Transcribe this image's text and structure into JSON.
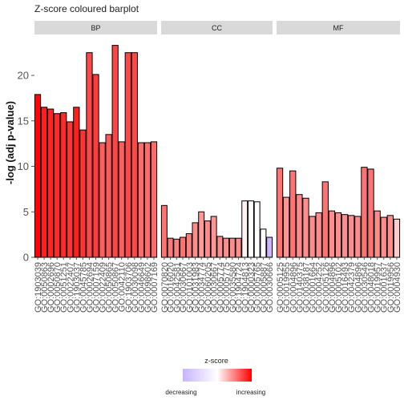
{
  "chart_data": {
    "type": "bar",
    "title": "Z-score coloured barplot",
    "ylabel": "-log (adj p-value)",
    "xlabel": "",
    "ylim": [
      0,
      24.5
    ],
    "yticks": [
      0,
      5,
      10,
      15,
      20
    ],
    "grid": false,
    "legend": {
      "title": "z-score",
      "low_label": "decreasing",
      "high_label": "increasing",
      "placement": "bottom"
    },
    "colors": {
      "increasing": "#ff0000",
      "neutral": "#ffffff",
      "decreasing": "#c8b4ff",
      "strip": "#d9d9d9",
      "edge": "#000000"
    },
    "panels": [
      {
        "name": "BP",
        "bars": [
          {
            "term": "GO:1903039",
            "value": 17.9,
            "z": 0.98
          },
          {
            "term": "GO:0050863",
            "value": 16.5,
            "z": 0.88
          },
          {
            "term": "GO:0002696",
            "value": 16.3,
            "z": 0.86
          },
          {
            "term": "GO:0050870",
            "value": 15.8,
            "z": 0.83
          },
          {
            "term": "GO:0051251",
            "value": 15.9,
            "z": 0.84
          },
          {
            "term": "GO:0022407",
            "value": 14.9,
            "z": 0.79
          },
          {
            "term": "GO:1903037",
            "value": 16.5,
            "z": 0.88
          },
          {
            "term": "GO:0045785",
            "value": 14.0,
            "z": 0.8
          },
          {
            "term": "GO:0002694",
            "value": 22.5,
            "z": 0.72
          },
          {
            "term": "GO:0007159",
            "value": 20.1,
            "z": 0.77
          },
          {
            "term": "GO:0022409",
            "value": 12.6,
            "z": 0.63
          },
          {
            "term": "GO:0050865",
            "value": 13.5,
            "z": 0.65
          },
          {
            "term": "GO:0050867",
            "value": 23.3,
            "z": 0.73
          },
          {
            "term": "GO:0042110",
            "value": 12.7,
            "z": 0.63
          },
          {
            "term": "GO:1903706",
            "value": 22.5,
            "z": 0.72
          },
          {
            "term": "GO:0030098",
            "value": 22.5,
            "z": 0.72
          },
          {
            "term": "GO:0046649",
            "value": 12.6,
            "z": 0.58
          },
          {
            "term": "GO:0098602",
            "value": 12.6,
            "z": 0.58
          },
          {
            "term": "GO:0007169",
            "value": 12.7,
            "z": 0.59
          }
        ]
      },
      {
        "name": "CC",
        "bars": [
          {
            "term": "GO:0070820",
            "value": 5.7,
            "z": 0.55
          },
          {
            "term": "GO:0016020",
            "value": 2.1,
            "z": 0.52
          },
          {
            "term": "GO:0042581",
            "value": 2.0,
            "z": 0.5
          },
          {
            "term": "GO:0030667",
            "value": 2.2,
            "z": 0.55
          },
          {
            "term": "GO:0101003",
            "value": 2.6,
            "z": 0.5
          },
          {
            "term": "GO:0031983",
            "value": 3.8,
            "z": 0.45
          },
          {
            "term": "GO:0034774",
            "value": 5.0,
            "z": 0.4
          },
          {
            "term": "GO:0060205",
            "value": 4.0,
            "z": 0.45
          },
          {
            "term": "GO:0030667",
            "value": 4.5,
            "z": 0.42
          },
          {
            "term": "GO:0005774",
            "value": 2.3,
            "z": 0.45
          },
          {
            "term": "GO:0005775",
            "value": 2.1,
            "z": 0.45
          },
          {
            "term": "GO:0035580",
            "value": 2.1,
            "z": 0.45
          },
          {
            "term": "GO:1904724",
            "value": 2.1,
            "z": 0.45
          },
          {
            "term": "GO:1904813",
            "value": 6.2,
            "z": 0.05
          },
          {
            "term": "GO:0000323",
            "value": 6.2,
            "z": 0.0
          },
          {
            "term": "GO:0005765",
            "value": 6.1,
            "z": 0.0
          },
          {
            "term": "GO:0005887",
            "value": 3.1,
            "z": 0.0
          },
          {
            "term": "GO:0030666",
            "value": 2.2,
            "z": -1.0
          }
        ]
      },
      {
        "name": "MF",
        "bars": [
          {
            "term": "GO:0005125",
            "value": 9.8,
            "z": 0.55
          },
          {
            "term": "GO:0019955",
            "value": 6.6,
            "z": 0.42
          },
          {
            "term": "GO:0004896",
            "value": 9.5,
            "z": 0.55
          },
          {
            "term": "GO:0140375",
            "value": 6.9,
            "z": 0.45
          },
          {
            "term": "GO:0038187",
            "value": 6.5,
            "z": 0.45
          },
          {
            "term": "GO:0001664",
            "value": 4.5,
            "z": 0.45
          },
          {
            "term": "GO:0004252",
            "value": 4.9,
            "z": 0.45
          },
          {
            "term": "GO:0005126",
            "value": 8.3,
            "z": 0.55
          },
          {
            "term": "GO:0004896",
            "value": 5.1,
            "z": 0.45
          },
          {
            "term": "GO:0005102",
            "value": 4.9,
            "z": 0.45
          },
          {
            "term": "GO:0016493",
            "value": 4.7,
            "z": 0.45
          },
          {
            "term": "GO:0042379",
            "value": 4.6,
            "z": 0.45
          },
          {
            "term": "GO:0004896",
            "value": 4.5,
            "z": 0.45
          },
          {
            "term": "GO:0030546",
            "value": 9.9,
            "z": 0.55
          },
          {
            "term": "GO:0048018",
            "value": 9.7,
            "z": 0.55
          },
          {
            "term": "GO:0019957",
            "value": 5.1,
            "z": 0.45
          },
          {
            "term": "GO:0001637",
            "value": 4.4,
            "z": 0.45
          },
          {
            "term": "GO:0019956",
            "value": 4.6,
            "z": 0.45
          },
          {
            "term": "GO:0004930",
            "value": 4.2,
            "z": 0.2
          }
        ]
      }
    ]
  }
}
